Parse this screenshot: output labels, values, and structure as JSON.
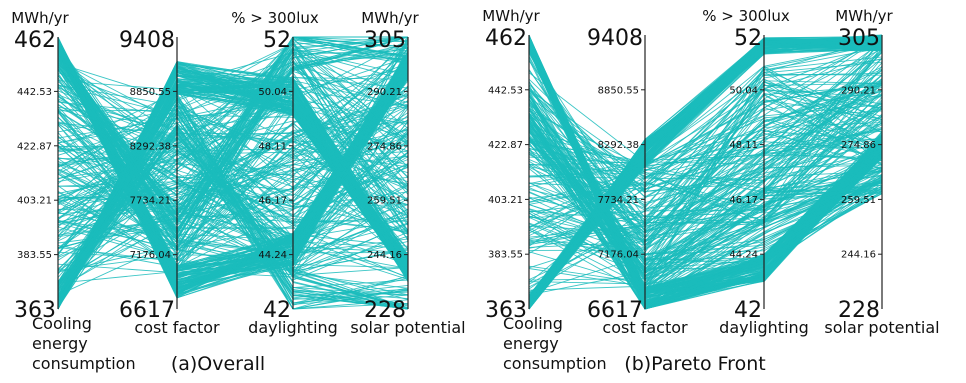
{
  "line_color": "#1bbcbc",
  "chart_data": [
    {
      "type": "parallel-coordinates",
      "title": "(a)Overall",
      "axes": [
        {
          "name": "Cooling energy consumption",
          "name_lines": [
            "Cooling",
            "energy",
            "consumption"
          ],
          "unit": "MWh/yr",
          "range": [
            363,
            462
          ],
          "min_label": "363",
          "max_label": "462",
          "ticks": [
            "442.53",
            "422.87",
            "403.21",
            "383.55"
          ]
        },
        {
          "name": "cost factor",
          "name_lines": [
            "cost factor"
          ],
          "unit": "",
          "range": [
            6617,
            9408
          ],
          "min_label": "6617",
          "max_label": "9408",
          "ticks": [
            "8850.55",
            "8292.38",
            "7734.21",
            "7176.04"
          ]
        },
        {
          "name": "daylighting",
          "name_lines": [
            "daylighting"
          ],
          "unit": "% > 300lux",
          "range": [
            42,
            52
          ],
          "min_label": "42",
          "max_label": "52",
          "ticks": [
            "50.04",
            "48.11",
            "46.17",
            "44.24"
          ]
        },
        {
          "name": "solar potential",
          "name_lines": [
            "solar potential"
          ],
          "unit": "MWh/yr",
          "range": [
            228,
            305
          ],
          "min_label": "228",
          "max_label": "305",
          "ticks": [
            "290.21",
            "274.86",
            "259.51",
            "244.16"
          ]
        }
      ],
      "bundles": [
        {
          "count": 120,
          "spread": [
            0.03,
            0.06,
            0.06,
            0.05
          ],
          "anchors": [
            0.97,
            0.1,
            0.22,
            0.9
          ]
        },
        {
          "count": 110,
          "spread": [
            0.03,
            0.06,
            0.07,
            0.05
          ],
          "anchors": [
            0.02,
            0.85,
            0.78,
            0.15
          ]
        },
        {
          "count": 200,
          "spread": [
            0.45,
            0.35,
            0.45,
            0.45
          ],
          "anchors": [
            0.5,
            0.48,
            0.55,
            0.55
          ]
        },
        {
          "count": 40,
          "spread": [
            0.05,
            0.08,
            0.1,
            0.08
          ],
          "anchors": [
            0.93,
            0.3,
            0.96,
            0.98
          ]
        },
        {
          "count": 40,
          "spread": [
            0.05,
            0.08,
            0.1,
            0.1
          ],
          "anchors": [
            0.05,
            0.72,
            0.05,
            0.03
          ]
        }
      ]
    },
    {
      "type": "parallel-coordinates",
      "title": "(b)Pareto Front",
      "axes": [
        {
          "name": "Cooling energy consumption",
          "name_lines": [
            "Cooling",
            "energy",
            "consumption"
          ],
          "unit": "MWh/yr",
          "range": [
            363,
            462
          ],
          "min_label": "363",
          "max_label": "462",
          "ticks": [
            "442.53",
            "422.87",
            "403.21",
            "383.55"
          ]
        },
        {
          "name": "cost factor",
          "name_lines": [
            "cost factor"
          ],
          "unit": "",
          "range": [
            6617,
            9408
          ],
          "min_label": "6617",
          "max_label": "9408",
          "ticks": [
            "8850.55",
            "8292.38",
            "7734.21",
            "7176.04"
          ]
        },
        {
          "name": "daylighting",
          "name_lines": [
            "daylighting"
          ],
          "unit": "% > 300lux",
          "range": [
            42,
            52
          ],
          "min_label": "42",
          "max_label": "52",
          "ticks": [
            "50.04",
            "48.11",
            "46.17",
            "44.24"
          ]
        },
        {
          "name": "solar potential",
          "name_lines": [
            "solar potential"
          ],
          "unit": "MWh/yr",
          "range": [
            228,
            305
          ],
          "min_label": "228",
          "max_label": "305",
          "ticks": [
            "290.21",
            "274.86",
            "259.51",
            "244.16"
          ]
        }
      ],
      "bundles": [
        {
          "count": 130,
          "spread": [
            0.03,
            0.05,
            0.05,
            0.05
          ],
          "anchors": [
            0.97,
            0.03,
            0.15,
            0.6
          ]
        },
        {
          "count": 110,
          "spread": [
            0.03,
            0.05,
            0.03,
            0.03
          ],
          "anchors": [
            0.02,
            0.57,
            0.96,
            0.97
          ]
        },
        {
          "count": 150,
          "spread": [
            0.45,
            0.25,
            0.3,
            0.25
          ],
          "anchors": [
            0.5,
            0.3,
            0.6,
            0.75
          ]
        },
        {
          "count": 60,
          "spread": [
            0.1,
            0.12,
            0.15,
            0.05
          ],
          "anchors": [
            0.7,
            0.1,
            0.3,
            0.47
          ]
        }
      ]
    }
  ]
}
